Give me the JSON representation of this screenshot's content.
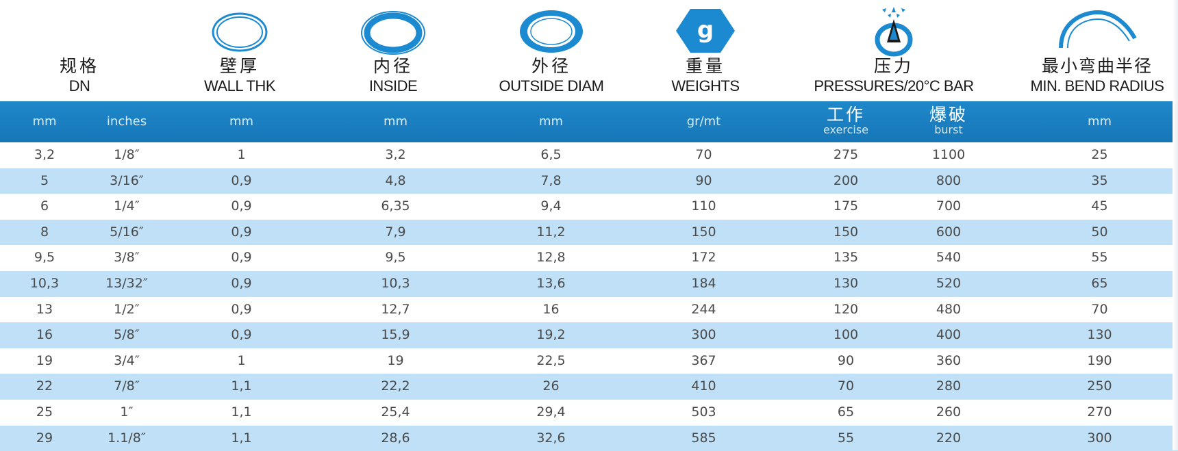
{
  "header": {
    "columns": [
      {
        "cn": "规格",
        "en": "DN",
        "icon": null
      },
      {
        "cn": "壁厚",
        "en": "WALL THK",
        "icon": "thin-ring-icon"
      },
      {
        "cn": "内径",
        "en": "INSIDE",
        "icon": "inner-diameter-ring-icon"
      },
      {
        "cn": "外径",
        "en": "OUTSIDE DIAM",
        "icon": "outer-diameter-ring-icon"
      },
      {
        "cn": "重量",
        "en": "WEIGHTS",
        "icon": "weight-hexagon-icon",
        "icon_text": "g"
      },
      {
        "cn": "压力",
        "en": "PRESSURES/20°C BAR",
        "icon": "pressure-burst-icon"
      },
      {
        "cn": "最小弯曲半径",
        "en": "MIN. BEND RADIUS",
        "icon": "bend-curve-icon"
      }
    ]
  },
  "units": {
    "dn_mm": "mm",
    "dn_inches": "inches",
    "wall": "mm",
    "inside": "mm",
    "outside": "mm",
    "weight": "gr/mt",
    "work_cn": "工作",
    "work_en": "exercise",
    "burst_cn": "爆破",
    "burst_en": "burst",
    "bend": "mm"
  },
  "rows": [
    [
      "3,2",
      "1/8″",
      "1",
      "3,2",
      "6,5",
      "70",
      "275",
      "1100",
      "25"
    ],
    [
      "5",
      "3/16″",
      "0,9",
      "4,8",
      "7,8",
      "90",
      "200",
      "800",
      "35"
    ],
    [
      "6",
      "1/4″",
      "0,9",
      "6,35",
      "9,4",
      "110",
      "175",
      "700",
      "45"
    ],
    [
      "8",
      "5/16″",
      "0,9",
      "7,9",
      "11,2",
      "150",
      "150",
      "600",
      "50"
    ],
    [
      "9,5",
      "3/8″",
      "0,9",
      "9,5",
      "12,8",
      "172",
      "135",
      "540",
      "55"
    ],
    [
      "10,3",
      "13/32″",
      "0,9",
      "10,3",
      "13,6",
      "184",
      "130",
      "520",
      "65"
    ],
    [
      "13",
      "1/2″",
      "0,9",
      "12,7",
      "16",
      "244",
      "120",
      "480",
      "70"
    ],
    [
      "16",
      "5/8″",
      "0,9",
      "15,9",
      "19,2",
      "300",
      "100",
      "400",
      "130"
    ],
    [
      "19",
      "3/4″",
      "1",
      "19",
      "22,5",
      "367",
      "90",
      "360",
      "190"
    ],
    [
      "22",
      "7/8″",
      "1,1",
      "22,2",
      "26",
      "410",
      "70",
      "280",
      "250"
    ],
    [
      "25",
      "1″",
      "1,1",
      "25,4",
      "29,4",
      "503",
      "65",
      "260",
      "270"
    ],
    [
      "29",
      "1.1/8″",
      "1,1",
      "28,6",
      "32,6",
      "585",
      "55",
      "220",
      "300"
    ]
  ],
  "colors": {
    "band_blue": "#1a7fc1",
    "row_light_blue": "#c7e5f7",
    "icon_blue": "#1c8ad0"
  }
}
